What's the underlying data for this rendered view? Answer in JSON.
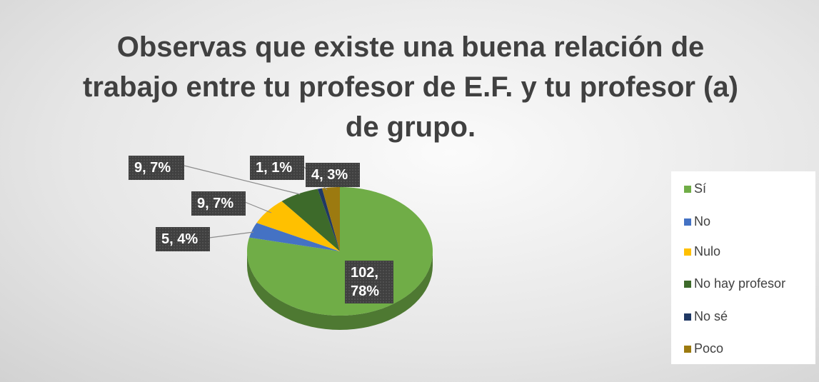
{
  "chart_data": {
    "type": "pie",
    "title": "Observas que existe una buena relación de trabajo entre tu profesor de E.F. y tu profesor (a) de grupo.",
    "categories": [
      "Sí",
      "No",
      "Nulo",
      "No hay profesor",
      "No sé",
      "Poco"
    ],
    "values": [
      102,
      5,
      9,
      9,
      1,
      4
    ],
    "value_labels": [
      "102, 78%",
      "5, 4%",
      "9, 7%",
      "9, 7%",
      "1, 1%",
      "4, 3%"
    ],
    "colors": [
      "#70ad47",
      "#4472c4",
      "#ffc000",
      "#3d6a2a",
      "#203864",
      "#9c7a10"
    ],
    "legend": "right"
  }
}
